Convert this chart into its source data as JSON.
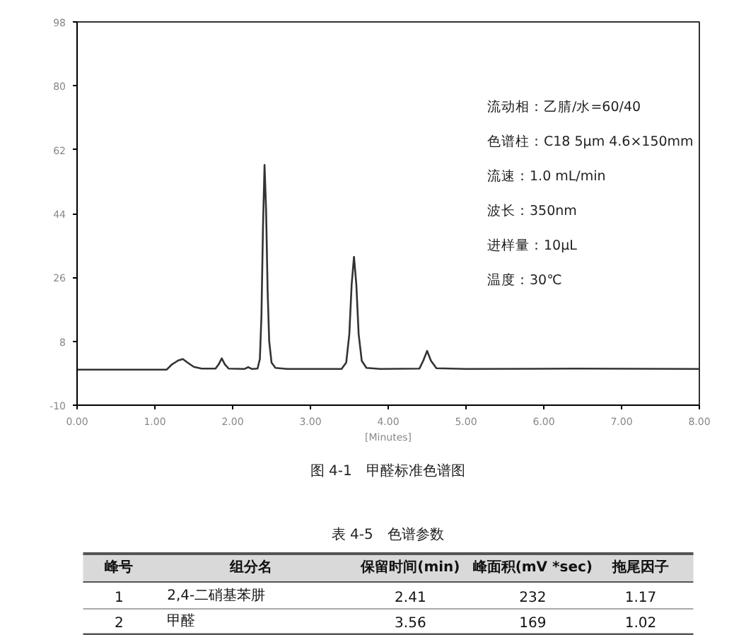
{
  "chart_data": {
    "type": "line",
    "title": "图 4-1　甲醛标准色谱图",
    "xlabel": "[Minutes]",
    "x": [
      0,
      1.15,
      1.22,
      1.3,
      1.36,
      1.42,
      1.5,
      1.6,
      1.78,
      1.82,
      1.86,
      1.9,
      1.95,
      2.15,
      2.2,
      2.25,
      2.32,
      2.35,
      2.37,
      2.39,
      2.41,
      2.43,
      2.45,
      2.47,
      2.5,
      2.55,
      2.7,
      3.4,
      3.46,
      3.5,
      3.53,
      3.56,
      3.59,
      3.62,
      3.66,
      3.72,
      3.9,
      4.4,
      4.45,
      4.5,
      4.55,
      4.62,
      5,
      6.4,
      8
    ],
    "series": [
      {
        "color": "#333333",
        "values": [
          0,
          0,
          1.5,
          2.6,
          3,
          2,
          0.8,
          0.3,
          0.3,
          1.5,
          3.2,
          1.5,
          0.3,
          0.2,
          0.7,
          0.2,
          0.3,
          3,
          15,
          40,
          57.7,
          45,
          22,
          8,
          2,
          0.5,
          0.2,
          0.2,
          2,
          10,
          24,
          31.8,
          24,
          10,
          2.5,
          0.5,
          0.2,
          0.3,
          2.5,
          5.3,
          2.5,
          0.4,
          0.2,
          0.3,
          0.2
        ]
      }
    ],
    "xlim": [
      0,
      8
    ],
    "ylim": [
      -10,
      98
    ],
    "xticks": [
      {
        "value": 0,
        "label": "0.00"
      },
      {
        "value": 1,
        "label": "1.00"
      },
      {
        "value": 2,
        "label": "2.00"
      },
      {
        "value": 3,
        "label": "3.00"
      },
      {
        "value": 4,
        "label": "4.00"
      },
      {
        "value": 5,
        "label": "5.00"
      },
      {
        "value": 6,
        "label": "6.00"
      },
      {
        "value": 7,
        "label": "7.00"
      },
      {
        "value": 8,
        "label": "8.00"
      }
    ],
    "yticks": [
      -10,
      8,
      26,
      44,
      62,
      80,
      98
    ],
    "grid": false,
    "marker": "none",
    "line_style": "solid",
    "annotations": [
      "流动相：乙腈/水=60/40",
      "色谱柱：C18 5μm 4.6×150mm",
      "流速：1.0 mL/min",
      "波长：350nm",
      "进样量：10μL",
      "温度：30℃",
      "表 4-5　色谱参数",
      "峰号",
      "组分名",
      "保留时间(min)",
      "峰面积(mV *sec)",
      "拖尾因子",
      "1",
      "2,4-二硝基苯肼",
      "2.41",
      "232",
      "1.17",
      "2",
      "甲醛",
      "3.56",
      "169",
      "1.02"
    ]
  }
}
